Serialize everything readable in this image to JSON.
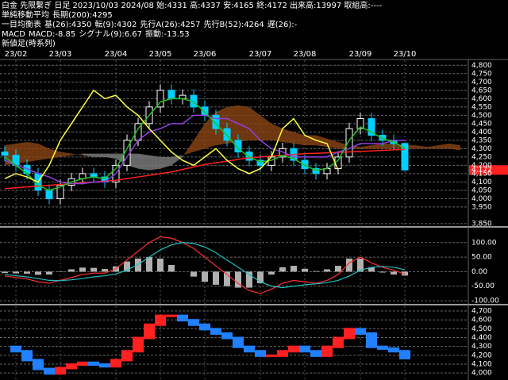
{
  "header": {
    "title": "白金 先限繋ぎ 日足 2023/10/03 2024/08 始:4331 高:4337 安:4165 終:4172 出来高:13997 取組高:----",
    "legends": [
      {
        "label": "単純移動平均",
        "items": [
          {
            "text": "長期(200):4295",
            "color": "#ff3030"
          }
        ]
      },
      {
        "label": "一目均衡表",
        "items": [
          {
            "text": "基(26):4350",
            "color": "#b060ff"
          },
          {
            "text": "転(9):4302",
            "color": "#30d030"
          },
          {
            "text": "先行A(26):4257",
            "color": "#ff9020"
          },
          {
            "text": "先行B(52):4264",
            "color": "#c08040"
          },
          {
            "text": "遅(26):-",
            "color": "#ffff40"
          }
        ]
      },
      {
        "label": "MACD",
        "items": [
          {
            "text": "MACD:-8.85",
            "color": "#ff3030"
          },
          {
            "text": "シグナル(9):6.67",
            "color": "#20c0c0"
          },
          {
            "text": "振動:-13.53",
            "color": "#ffffff"
          }
        ]
      },
      {
        "label": "新値足(時系列)"
      }
    ]
  },
  "chart_data": [
    {
      "type": "candlestick",
      "categories": [
        null,
        "23/02",
        null,
        null,
        null,
        "23/03",
        null,
        null,
        null,
        null,
        "23/04",
        null,
        null,
        null,
        "23/05",
        null,
        null,
        null,
        "23/06",
        null,
        null,
        null,
        null,
        "23/07",
        null,
        null,
        null,
        "23/08",
        null,
        null,
        null,
        null,
        "23/09",
        null,
        null,
        null,
        "23/10",
        null,
        null,
        null,
        null,
        null
      ],
      "open": [
        4280,
        4260,
        4200,
        4150,
        4050,
        4000,
        4080,
        4120,
        4150,
        4130,
        4100,
        4200,
        4350,
        4450,
        4550,
        4650,
        4600,
        4620,
        4550,
        4500,
        4420,
        4350,
        4280,
        4230,
        4200,
        4250,
        4300,
        4230,
        4180,
        4150,
        4180,
        4250,
        4420,
        4480,
        4380,
        4350,
        4331,
        null,
        null,
        null,
        null,
        null
      ],
      "high": [
        4315,
        4295,
        4235,
        4185,
        4085,
        4115,
        4155,
        4185,
        4185,
        4165,
        4235,
        4385,
        4485,
        4585,
        4685,
        4685,
        4655,
        4655,
        4585,
        4535,
        4455,
        4385,
        4315,
        4265,
        4285,
        4335,
        4335,
        4265,
        4215,
        4215,
        4285,
        4455,
        4515,
        4515,
        4415,
        4385,
        4337,
        null,
        null,
        null,
        null,
        null
      ],
      "low": [
        4225,
        4165,
        4115,
        4015,
        3965,
        3965,
        4045,
        4085,
        4095,
        4065,
        4065,
        4165,
        4315,
        4415,
        4515,
        4565,
        4565,
        4515,
        4465,
        4385,
        4315,
        4245,
        4195,
        4165,
        4165,
        4215,
        4195,
        4145,
        4115,
        4115,
        4145,
        4215,
        4385,
        4345,
        4315,
        4295,
        4165,
        null,
        null,
        null,
        null,
        null
      ],
      "close": [
        4260,
        4200,
        4150,
        4050,
        4000,
        4080,
        4120,
        4150,
        4130,
        4100,
        4200,
        4350,
        4450,
        4550,
        4650,
        4600,
        4620,
        4550,
        4500,
        4420,
        4350,
        4280,
        4230,
        4200,
        4250,
        4300,
        4230,
        4180,
        4150,
        4180,
        4250,
        4420,
        4480,
        4380,
        4350,
        4330,
        4172,
        null,
        null,
        null,
        null,
        null
      ],
      "up_color": "#ffffff",
      "down_color": "#00d0ff",
      "series": [
        {
          "color": "#ff2020",
          "values": [
            4060,
            4065,
            4070,
            4075,
            4080,
            4085,
            4090,
            4095,
            4100,
            4105,
            4110,
            4120,
            4130,
            4140,
            4150,
            4160,
            4175,
            4190,
            4205,
            4215,
            4225,
            4235,
            4245,
            4250,
            4255,
            4260,
            4265,
            4270,
            4272,
            4275,
            4278,
            4280,
            4283,
            4286,
            4290,
            4293,
            4295,
            null,
            null,
            null,
            null,
            null
          ]
        },
        {
          "color": "#9040e0",
          "values": [
            4230,
            4200,
            4180,
            4150,
            4130,
            4100,
            4090,
            4090,
            4100,
            4100,
            4150,
            4250,
            4350,
            4400,
            4420,
            4450,
            4450,
            4500,
            4500,
            4480,
            4480,
            4450,
            4420,
            4350,
            4300,
            4280,
            4250,
            4250,
            4250,
            4250,
            4280,
            4300,
            4330,
            4330,
            4330,
            4350,
            4350,
            null,
            null,
            null,
            null,
            null
          ]
        },
        {
          "color": "#20c020",
          "values": [
            4250,
            4200,
            4150,
            4080,
            4050,
            4070,
            4100,
            4120,
            4130,
            4120,
            4180,
            4300,
            4420,
            4500,
            4580,
            4600,
            4600,
            4580,
            4520,
            4450,
            4380,
            4300,
            4250,
            4220,
            4230,
            4260,
            4240,
            4200,
            4170,
            4180,
            4230,
            4350,
            4430,
            4400,
            4360,
            4340,
            4302,
            null,
            null,
            null,
            null,
            null
          ]
        },
        {
          "color": "#ffff40",
          "values": [
            4120,
            4150,
            4130,
            4100,
            4200,
            4350,
            4450,
            4550,
            4650,
            4600,
            4620,
            4550,
            4500,
            4420,
            4350,
            4280,
            4230,
            4200,
            4250,
            4300,
            4230,
            4180,
            4150,
            4180,
            4250,
            4420,
            4480,
            4380,
            4350,
            4330,
            4172,
            null,
            null,
            null,
            null,
            null,
            null,
            null,
            null,
            null,
            null,
            null
          ]
        }
      ],
      "cloud": {
        "span_a": [
          4320,
          4330,
          4340,
          4330,
          4300,
          4280,
          4270,
          4260,
          4250,
          4250,
          4240,
          4200,
          4180,
          4170,
          4180,
          4200,
          4250,
          4350,
          4450,
          4520,
          4550,
          4560,
          4550,
          4500,
          4450,
          4420,
          4400,
          4380,
          4380,
          4360,
          4340,
          4320,
          4310,
          4320,
          4330,
          4330,
          4320,
          4320,
          4310,
          4320,
          4330,
          4320
        ],
        "span_b": [
          4200,
          4210,
          4220,
          4230,
          4240,
          4250,
          4260,
          4270,
          4270,
          4270,
          4270,
          4270,
          4270,
          4260,
          4250,
          4250,
          4260,
          4280,
          4300,
          4320,
          4330,
          4340,
          4350,
          4350,
          4350,
          4340,
          4330,
          4320,
          4320,
          4310,
          4300,
          4300,
          4300,
          4300,
          4300,
          4300,
          4300,
          4300,
          4300,
          4300,
          4300,
          4290
        ],
        "up_color": "#8b4513",
        "down_color": "#808080"
      },
      "current_price_label": "4,172",
      "ylim": [
        3840,
        4830
      ],
      "yticks": [
        {
          "value": 3850,
          "label": "3,850"
        },
        {
          "value": 3950,
          "label": "3,950"
        },
        {
          "value": 4000,
          "label": "4,000"
        },
        {
          "value": 4050,
          "label": "4,050"
        },
        {
          "value": 4100,
          "label": "4,100"
        },
        {
          "value": 4150,
          "label": "4,150"
        },
        {
          "value": 4200,
          "label": "4,200"
        },
        {
          "value": 4250,
          "label": "4,250"
        },
        {
          "value": 4300,
          "label": "4,300"
        },
        {
          "value": 4350,
          "label": "4,350"
        },
        {
          "value": 4400,
          "label": "4,400"
        },
        {
          "value": 4450,
          "label": "4,450"
        },
        {
          "value": 4500,
          "label": "4,500"
        },
        {
          "value": 4550,
          "label": "4,550"
        },
        {
          "value": 4600,
          "label": "4,600"
        },
        {
          "value": 4650,
          "label": "4,650"
        },
        {
          "value": 4700,
          "label": "4,700"
        },
        {
          "value": 4750,
          "label": "4,750"
        },
        {
          "value": 4800,
          "label": "4,800"
        }
      ],
      "grid": true
    },
    {
      "type": "macd",
      "series": [
        {
          "color": "#ff3030",
          "values": [
            -15,
            -20,
            -25,
            -35,
            -40,
            -30,
            -20,
            -10,
            -5,
            -5,
            10,
            40,
            70,
            100,
            120,
            115,
            100,
            80,
            50,
            20,
            -10,
            -40,
            -65,
            -75,
            -60,
            -40,
            -30,
            -35,
            -40,
            -30,
            -10,
            30,
            50,
            30,
            15,
            5,
            -8.85,
            null,
            null,
            null,
            null,
            null
          ]
        },
        {
          "color": "#20c0c0",
          "values": [
            -10,
            -14,
            -18,
            -24,
            -30,
            -31,
            -28,
            -24,
            -18,
            -14,
            -8,
            5,
            25,
            50,
            75,
            92,
            100,
            97,
            85,
            65,
            40,
            15,
            -10,
            -35,
            -50,
            -55,
            -50,
            -45,
            -42,
            -38,
            -30,
            -15,
            5,
            15,
            18,
            15,
            6.67,
            null,
            null,
            null,
            null,
            null
          ]
        }
      ],
      "histogram": {
        "color": "#b0b0b0",
        "values": [
          -5,
          -6,
          -7,
          -11,
          -10,
          1,
          8,
          14,
          13,
          9,
          18,
          35,
          45,
          50,
          45,
          23,
          0,
          -17,
          -35,
          -45,
          -50,
          -55,
          -55,
          -40,
          -10,
          15,
          20,
          10,
          2,
          8,
          20,
          45,
          45,
          15,
          -3,
          -10,
          -13.53,
          null,
          null,
          null,
          null,
          null
        ]
      },
      "ylim": [
        -108,
        143
      ],
      "yticks": [
        {
          "value": 100,
          "label": "100.00"
        },
        {
          "value": 50,
          "label": "50.00"
        },
        {
          "value": 0,
          "label": "0.00"
        },
        {
          "value": -50,
          "label": "-50.00"
        },
        {
          "value": -100,
          "label": "-100.00"
        }
      ],
      "grid": true
    },
    {
      "type": "step",
      "values": [
        4300,
        4250,
        4150,
        4050,
        4000,
        4060,
        4100,
        4120,
        4100,
        4080,
        4150,
        4250,
        4400,
        4550,
        4650,
        4650,
        4600,
        4550,
        4500,
        4450,
        4400,
        4300,
        4250,
        4200,
        4200,
        4250,
        4300,
        4250,
        4200,
        4300,
        4400,
        4500,
        4450,
        4300,
        4280,
        4250,
        4172,
        null,
        null,
        null,
        null,
        null
      ],
      "up_color": "#ff2020",
      "down_color": "#2080ff",
      "ylim": [
        3930,
        4745
      ],
      "yticks": [
        {
          "value": 4000,
          "label": "4,000"
        },
        {
          "value": 4100,
          "label": "4,100"
        },
        {
          "value": 4200,
          "label": "4,200"
        },
        {
          "value": 4300,
          "label": "4,300"
        },
        {
          "value": 4400,
          "label": "4,400"
        },
        {
          "value": 4500,
          "label": "4,500"
        },
        {
          "value": 4600,
          "label": "4,600"
        },
        {
          "value": 4700,
          "label": "4,700"
        }
      ],
      "grid": true
    }
  ]
}
